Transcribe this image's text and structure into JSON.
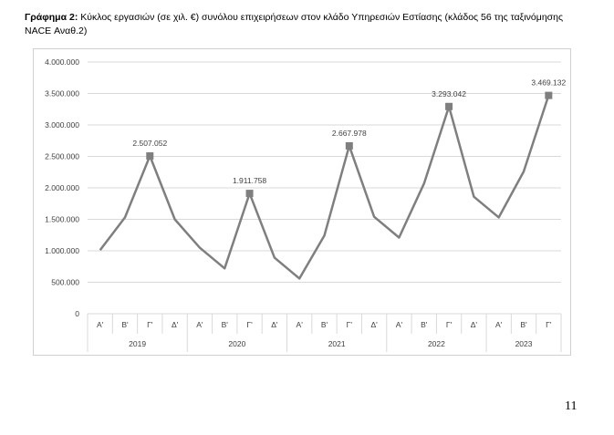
{
  "caption": {
    "label": "Γράφημα 2:",
    "text": " Κύκλος εργασιών (σε χιλ. €) συνόλου επιχειρήσεων στον κλάδο Υπηρεσιών Εστίασης (κλάδος 56 της ταξινόμησης NACE Αναθ.2)"
  },
  "page_number": "11",
  "chart_data": {
    "type": "line",
    "ylim": [
      0,
      4000000
    ],
    "yticks": [
      "0",
      "500.000",
      "1.000.000",
      "1.500.000",
      "2.000.000",
      "2.500.000",
      "3.000.000",
      "3.500.000",
      "4.000.000"
    ],
    "quarter_labels": [
      "Α'",
      "Β'",
      "Γ'",
      "Δ'",
      "Α'",
      "Β'",
      "Γ'",
      "Δ'",
      "Α'",
      "Β'",
      "Γ'",
      "Δ'",
      "Α'",
      "Β'",
      "Γ'",
      "Δ'",
      "Α'",
      "Β'",
      "Γ'"
    ],
    "years": [
      {
        "label": "2019",
        "quarters": 4
      },
      {
        "label": "2020",
        "quarters": 4
      },
      {
        "label": "2021",
        "quarters": 4
      },
      {
        "label": "2022",
        "quarters": 4
      },
      {
        "label": "2023",
        "quarters": 3
      }
    ],
    "values": [
      1010000,
      1530000,
      2507052,
      1500000,
      1050000,
      720000,
      1911758,
      890000,
      560000,
      1240000,
      2667978,
      1540000,
      1210000,
      2070000,
      3293042,
      1860000,
      1530000,
      2260000,
      3469132
    ],
    "annotations": [
      {
        "index": 2,
        "label": "2.507.052"
      },
      {
        "index": 6,
        "label": "1.911.758"
      },
      {
        "index": 10,
        "label": "2.667.978"
      },
      {
        "index": 14,
        "label": "3.293.042"
      },
      {
        "index": 18,
        "label": "3.469.132"
      }
    ],
    "grid": true,
    "line_color": "#7f7f7f",
    "marker_color": "#7f7f7f"
  }
}
